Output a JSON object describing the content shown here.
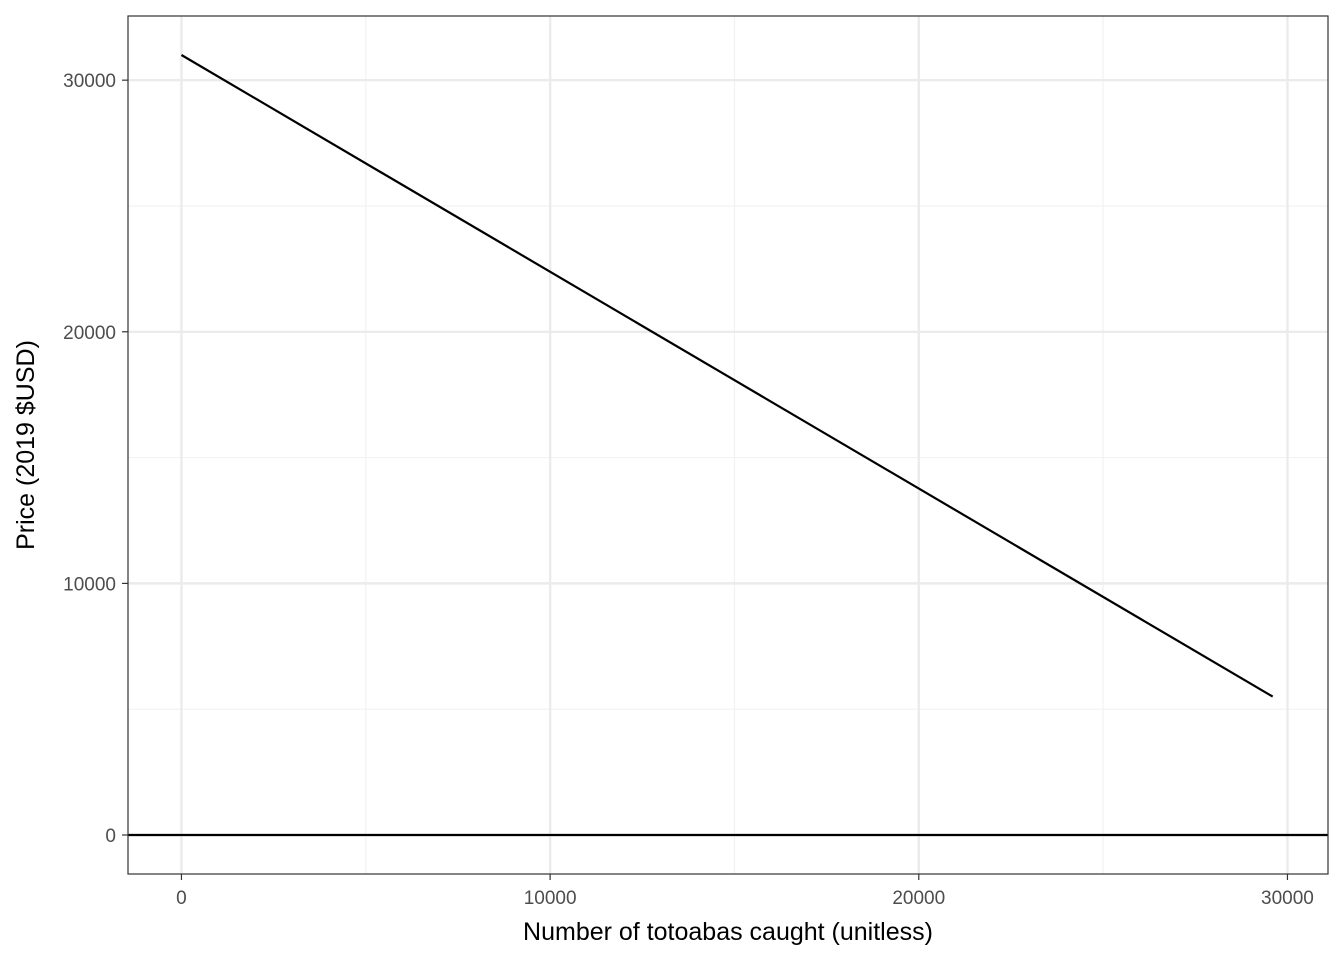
{
  "chart_data": {
    "type": "line",
    "title": "",
    "xlabel": "Number of totoabas caught (unitless)",
    "ylabel": "Price (2019 $USD)",
    "xlim": [
      -1450,
      31100
    ],
    "ylim": [
      -1550,
      32550
    ],
    "x_ticks": [
      0,
      10000,
      20000,
      30000
    ],
    "x_tick_labels": [
      "0",
      "10000",
      "20000",
      "30000"
    ],
    "y_ticks": [
      0,
      10000,
      20000,
      30000
    ],
    "y_tick_labels": [
      "0",
      "10000",
      "20000",
      "30000"
    ],
    "x_minor_ticks": [
      5000,
      15000,
      25000
    ],
    "y_minor_ticks": [
      5000,
      15000,
      25000
    ],
    "grid": true,
    "legend": "none",
    "hline": {
      "y": 0,
      "color": "#000000"
    },
    "series": [
      {
        "color": "#000000",
        "x": [
          0,
          29600
        ],
        "y": [
          31000,
          5500
        ]
      }
    ],
    "colors": {
      "panel_border": "#333333",
      "grid_major": "#ebebeb",
      "grid_minor": "#f2f2f2",
      "tick_text": "#4d4d4d"
    }
  }
}
